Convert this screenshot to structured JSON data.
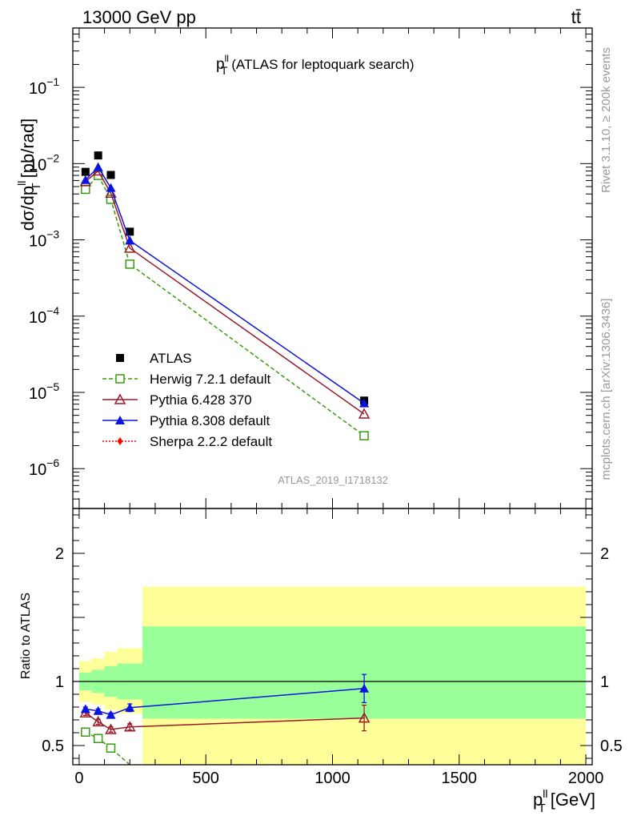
{
  "header": {
    "energy_label": "13000 GeV pp",
    "process_label": "tt̄"
  },
  "main_panel": {
    "title_prefix": "p",
    "title_sub": "T",
    "title_sup": "ll",
    "title_rest": " (ATLAS for leptoquark search)",
    "ylabel_main": "dσ/dp",
    "ylabel_sup": "ll",
    "ylabel_sub": "T",
    "ylabel_unit": " [pb/rad]",
    "analysis_label": "ATLAS_2019_I1718132"
  },
  "ratio_panel": {
    "ylabel": "Ratio to ATLAS"
  },
  "side_labels": {
    "rivet": "Rivet 3.1.10, ≥ 200k events",
    "mcplots": "mcplots.cern.ch [arXiv:1306.3436]"
  },
  "xaxis": {
    "label_main": "p",
    "label_sup": "ll",
    "label_sub": "T",
    "label_unit": " [GeV]"
  },
  "legend": [
    {
      "label": "ATLAS"
    },
    {
      "label": "Herwig 7.2.1 default"
    },
    {
      "label": "Pythia 6.428 370"
    },
    {
      "label": "Pythia 8.308 default"
    },
    {
      "label": "Sherpa 2.2.2 default"
    }
  ],
  "main_ytick_labels": [
    {
      "base": "10",
      "exp": "−1"
    },
    {
      "base": "10",
      "exp": "−2"
    },
    {
      "base": "10",
      "exp": "−3"
    },
    {
      "base": "10",
      "exp": "−4"
    },
    {
      "base": "10",
      "exp": "−5"
    },
    {
      "base": "10",
      "exp": "−6"
    }
  ],
  "chart_data": [
    {
      "type": "line",
      "panel": "main",
      "yscale": "log",
      "xlim": [
        -25,
        2025
      ],
      "ylim": [
        3e-07,
        0.6
      ],
      "x_ticks": [
        0,
        500,
        1000,
        1500,
        2000
      ],
      "y_ticks": [
        0.1,
        0.01,
        0.001,
        0.0001,
        1e-05,
        1e-06
      ],
      "series": [
        {
          "name": "ATLAS",
          "color": "#000000",
          "marker": "square-filled",
          "line": "none",
          "x": [
            25,
            75,
            125,
            200,
            1125
          ],
          "y": [
            0.0078,
            0.0128,
            0.0071,
            0.00128,
            7.8e-06
          ]
        },
        {
          "name": "Herwig 7.2.1 default",
          "color": "#3a9a10",
          "marker": "square-open",
          "line": "dashed",
          "x": [
            25,
            75,
            125,
            200,
            1125
          ],
          "y": [
            0.0046,
            0.007,
            0.0034,
            0.00048,
            2.7e-06
          ]
        },
        {
          "name": "Pythia 6.428 370",
          "color": "#9a1a2a",
          "marker": "triangle-open",
          "line": "solid",
          "x": [
            25,
            75,
            125,
            200,
            1125
          ],
          "y": [
            0.0058,
            0.008,
            0.0041,
            0.00078,
            5.2e-06
          ]
        },
        {
          "name": "Pythia 8.308 default",
          "color": "#0a14e0",
          "marker": "triangle-filled",
          "line": "solid",
          "x": [
            25,
            75,
            125,
            200,
            1125
          ],
          "y": [
            0.0061,
            0.009,
            0.0048,
            0.00098,
            7.2e-06
          ]
        },
        {
          "name": "Sherpa 2.2.2 default",
          "color": "#ff0000",
          "marker": "diamond-filled",
          "line": "dotted",
          "x": [],
          "y": []
        }
      ]
    },
    {
      "type": "line",
      "panel": "ratio",
      "ylabel": "Ratio to ATLAS",
      "xlabel": "pT ll [GeV]",
      "xlim": [
        -25,
        2025
      ],
      "ylim": [
        0.35,
        2.35
      ],
      "x_ticks": [
        0,
        500,
        1000,
        1500,
        2000
      ],
      "y_ticks": [
        0.5,
        1,
        2
      ],
      "bands": {
        "edges": [
          0,
          50,
          100,
          150,
          250,
          2000
        ],
        "yellow": [
          [
            0.84,
            1.16
          ],
          [
            0.82,
            1.18
          ],
          [
            0.78,
            1.23
          ],
          [
            0.75,
            1.26
          ],
          [
            0.35,
            1.74
          ]
        ],
        "green": [
          [
            0.93,
            1.07
          ],
          [
            0.91,
            1.09
          ],
          [
            0.88,
            1.12
          ],
          [
            0.86,
            1.14
          ],
          [
            0.71,
            1.43
          ]
        ]
      },
      "series": [
        {
          "name": "Herwig 7.2.1 default",
          "color": "#3a9a10",
          "marker": "square-open",
          "line": "dashed",
          "x": [
            25,
            75,
            125,
            200
          ],
          "y": [
            0.605,
            0.555,
            0.48,
            0.3
          ]
        },
        {
          "name": "Pythia 6.428 370",
          "color": "#9a1a2a",
          "marker": "triangle-open",
          "line": "solid",
          "x": [
            25,
            75,
            125,
            200,
            1125
          ],
          "y": [
            0.755,
            0.685,
            0.625,
            0.645,
            0.715
          ],
          "yerr": [
            0.02,
            0.02,
            0.02,
            0.025,
            0.1
          ]
        },
        {
          "name": "Pythia 8.308 default",
          "color": "#0a14e0",
          "marker": "triangle-filled",
          "line": "solid",
          "x": [
            25,
            75,
            125,
            200,
            1125
          ],
          "y": [
            0.785,
            0.77,
            0.74,
            0.795,
            0.945
          ],
          "yerr": [
            0.015,
            0.015,
            0.015,
            0.03,
            0.11
          ]
        }
      ]
    }
  ]
}
